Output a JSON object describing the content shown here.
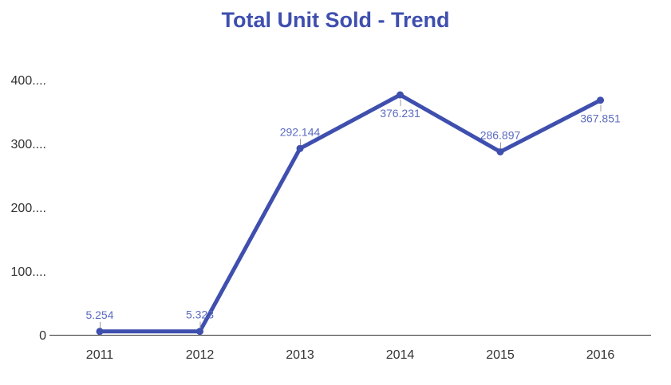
{
  "chart_data": {
    "type": "line",
    "title": "Total Unit Sold - Trend",
    "xlabel": "",
    "ylabel": "",
    "categories": [
      "2011",
      "2012",
      "2013",
      "2014",
      "2015",
      "2016"
    ],
    "values": [
      5.254,
      5.323,
      292.144,
      376.231,
      286.897,
      367.851
    ],
    "data_labels": [
      "5.254",
      "5.323",
      "292.144",
      "376.231",
      "286.897",
      "367.851"
    ],
    "ylim": [
      0,
      400
    ],
    "y_ticks": [
      0,
      100,
      200,
      300,
      400
    ],
    "y_tick_labels": [
      "0",
      "100....",
      "200....",
      "300....",
      "400...."
    ],
    "grid": false,
    "legend": "none",
    "colors": {
      "line": "#3f4fae",
      "title": "#3f4fae",
      "label": "#5b6bc0",
      "axis": "#333333"
    }
  }
}
